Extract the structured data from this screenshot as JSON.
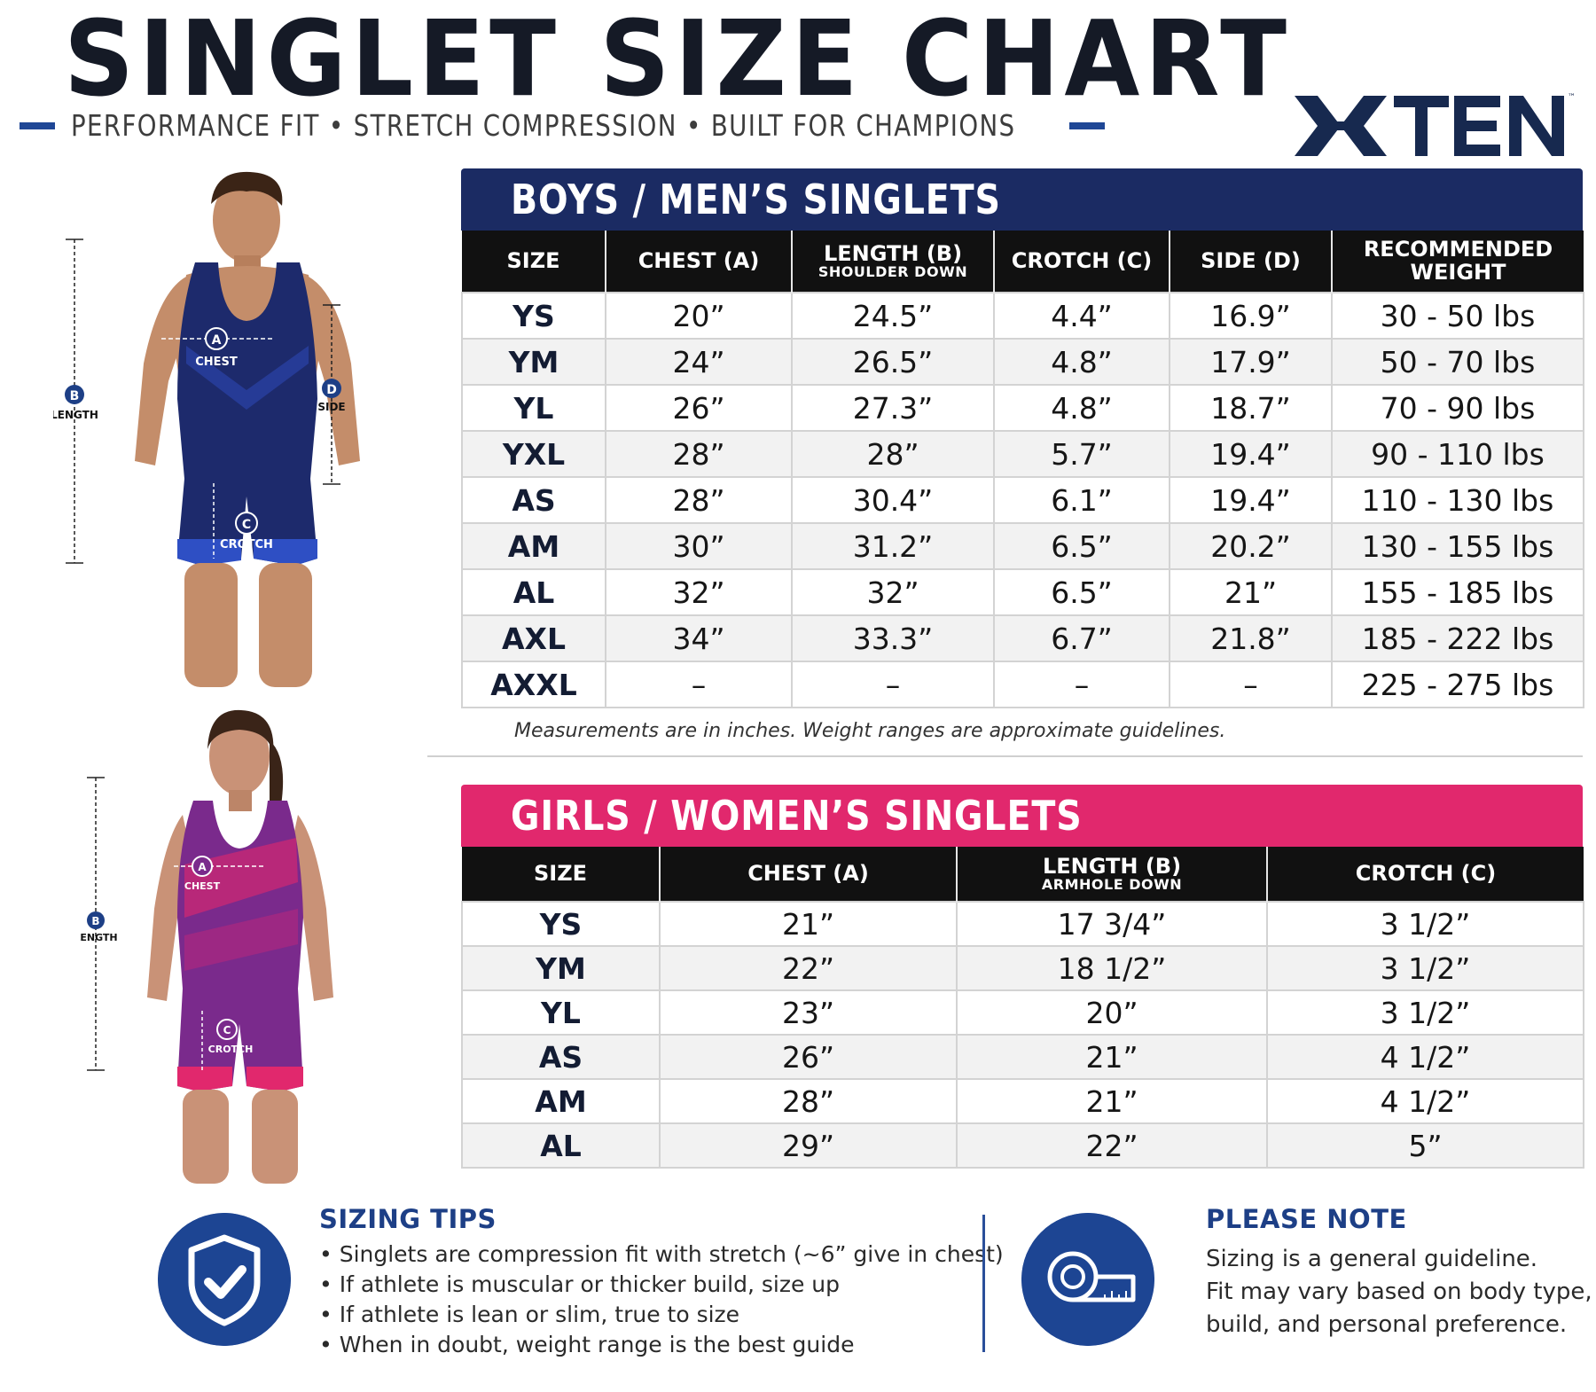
{
  "header": {
    "title": "SINGLET SIZE CHART",
    "tagline": "PERFORMANCE FIT • STRETCH COMPRESSION • BUILT FOR CHAMPIONS",
    "brand": "XTEN",
    "trademark": "™"
  },
  "figure_labels": {
    "a": "A",
    "b": "B",
    "c": "C",
    "d": "D",
    "chest": "CHEST",
    "length": "LENGTH",
    "crotch": "CROTCH",
    "side": "SIDE"
  },
  "boys": {
    "title": "BOYS / MEN’S SINGLETS",
    "headers": [
      {
        "main": "SIZE",
        "sub": ""
      },
      {
        "main": "CHEST (A)",
        "sub": ""
      },
      {
        "main": "LENGTH (B)",
        "sub": "SHOULDER DOWN"
      },
      {
        "main": "CROTCH (C)",
        "sub": ""
      },
      {
        "main": "SIDE (D)",
        "sub": ""
      },
      {
        "main": "RECOMMENDED WEIGHT",
        "sub": ""
      }
    ],
    "rows": [
      [
        "YS",
        "20”",
        "24.5”",
        "4.4”",
        "16.9”",
        "30 - 50 lbs"
      ],
      [
        "YM",
        "24”",
        "26.5”",
        "4.8”",
        "17.9”",
        "50 - 70 lbs"
      ],
      [
        "YL",
        "26”",
        "27.3”",
        "4.8”",
        "18.7”",
        "70 - 90 lbs"
      ],
      [
        "YXL",
        "28”",
        "28”",
        "5.7”",
        "19.4”",
        "90 - 110 lbs"
      ],
      [
        "AS",
        "28”",
        "30.4”",
        "6.1”",
        "19.4”",
        "110 - 130 lbs"
      ],
      [
        "AM",
        "30”",
        "31.2”",
        "6.5”",
        "20.2”",
        "130 - 155 lbs"
      ],
      [
        "AL",
        "32”",
        "32”",
        "6.5”",
        "21”",
        "155 - 185 lbs"
      ],
      [
        "AXL",
        "34”",
        "33.3”",
        "6.7”",
        "21.8”",
        "185 - 222 lbs"
      ],
      [
        "AXXL",
        "–",
        "–",
        "–",
        "–",
        "225 - 275 lbs"
      ]
    ],
    "note": "Measurements are in inches.  Weight ranges are approximate guidelines."
  },
  "girls": {
    "title": "GIRLS / WOMEN’S SINGLETS",
    "headers": [
      {
        "main": "SIZE",
        "sub": ""
      },
      {
        "main": "CHEST (A)",
        "sub": ""
      },
      {
        "main": "LENGTH (B)",
        "sub": "ARMHOLE DOWN"
      },
      {
        "main": "CROTCH (C)",
        "sub": ""
      }
    ],
    "rows": [
      [
        "YS",
        "21”",
        "17 3/4”",
        "3 1/2”"
      ],
      [
        "YM",
        "22”",
        "18 1/2”",
        "3 1/2”"
      ],
      [
        "YL",
        "23”",
        "20”",
        "3 1/2”"
      ],
      [
        "AS",
        "26”",
        "21”",
        "4 1/2”"
      ],
      [
        "AM",
        "28”",
        "21”",
        "4 1/2”"
      ],
      [
        "AL",
        "29”",
        "22”",
        "5”"
      ]
    ]
  },
  "tips": {
    "title": "SIZING TIPS",
    "items": [
      "Singlets are compression fit with stretch (~6” give in chest)",
      "If athlete is muscular or thicker build, size up",
      "If athlete is lean or slim, true to size",
      "When in doubt, weight range is the best guide"
    ]
  },
  "please_note": {
    "title": "PLEASE NOTE",
    "lines": [
      "Sizing is a general guideline.",
      "Fit may vary based on body type,",
      "build, and personal preference."
    ]
  },
  "colors": {
    "navy": "#1b2b63",
    "pink": "#e1286d",
    "accent_blue": "#1d4593",
    "header_black": "#111111"
  }
}
